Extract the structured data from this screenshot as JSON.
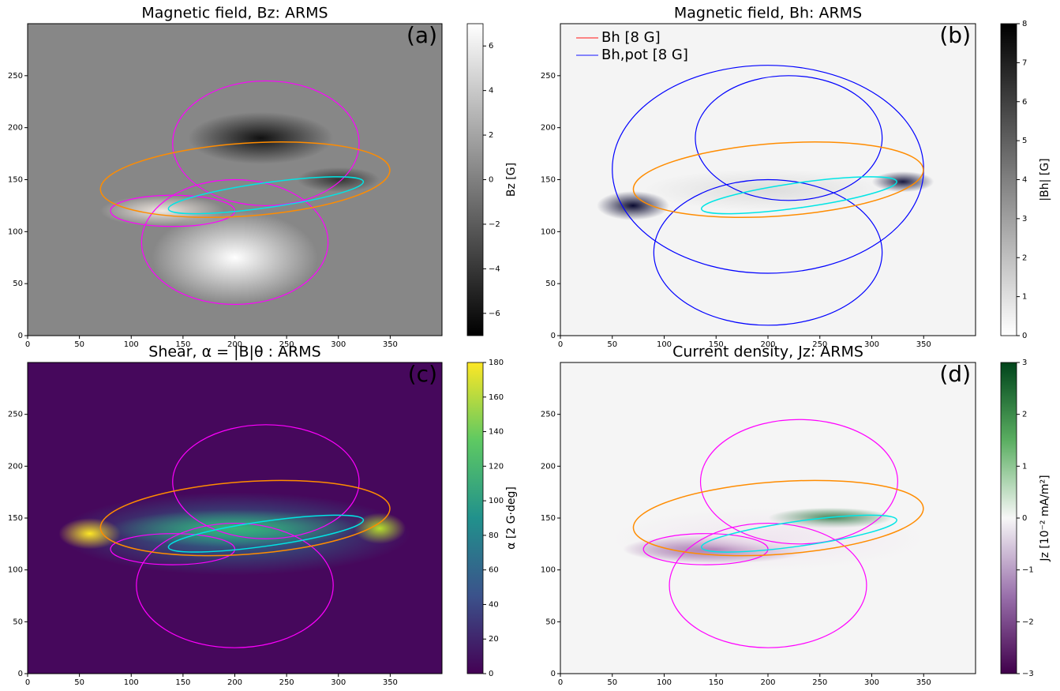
{
  "chart_data": [
    {
      "type": "heatmap",
      "title": "Magnetic field, Bz: ARMS",
      "panel_label": "(a)",
      "colorbar_label": "Bz [G]",
      "colormap": "gray",
      "xlim": [
        0,
        400
      ],
      "ylim": [
        0,
        300
      ],
      "xticks": [
        0,
        50,
        100,
        150,
        200,
        250,
        300,
        350
      ],
      "yticks": [
        0,
        50,
        100,
        150,
        200,
        250
      ],
      "clim": [
        -7,
        7
      ],
      "cticks": [
        {
          "value": -6,
          "label": "−6"
        },
        {
          "value": -4,
          "label": "−4"
        },
        {
          "value": -2,
          "label": "−2"
        },
        0,
        2,
        4,
        6
      ]
    },
    {
      "type": "heatmap",
      "title": "Magnetic field, Bh: ARMS",
      "panel_label": "(b)",
      "colorbar_label": "|Bh| [G]",
      "colormap": "gray_r",
      "xlim": [
        0,
        400
      ],
      "ylim": [
        0,
        300
      ],
      "xticks": [
        0,
        50,
        100,
        150,
        200,
        250,
        300,
        350
      ],
      "yticks": [
        0,
        50,
        100,
        150,
        200,
        250
      ],
      "clim": [
        0,
        8
      ],
      "cticks": [
        0,
        1,
        2,
        3,
        4,
        5,
        6,
        7,
        8
      ],
      "legend": [
        {
          "name": "Bh [8 G]",
          "color": "#ff4040"
        },
        {
          "name": "Bh,pot [8 G]",
          "color": "#4040ff"
        }
      ],
      "legend_loc": "upper left"
    },
    {
      "type": "heatmap",
      "title": "Shear, α = |B|θ : ARMS",
      "panel_label": "(c)",
      "colorbar_label": "α [2 G·deg]",
      "colormap": "viridis",
      "xlim": [
        0,
        400
      ],
      "ylim": [
        0,
        300
      ],
      "xticks": [
        0,
        50,
        100,
        150,
        200,
        250,
        300,
        350
      ],
      "yticks": [
        0,
        50,
        100,
        150,
        200,
        250
      ],
      "clim": [
        0,
        180
      ],
      "cticks": [
        0,
        20,
        40,
        60,
        80,
        100,
        120,
        140,
        160,
        180
      ]
    },
    {
      "type": "heatmap",
      "title": "Current density, Jz: ARMS",
      "panel_label": "(d)",
      "colorbar_label": "Jz [10⁻² mA/m²]",
      "colormap": "PRGn",
      "xlim": [
        0,
        400
      ],
      "ylim": [
        0,
        300
      ],
      "xticks": [
        0,
        50,
        100,
        150,
        200,
        250,
        300,
        350
      ],
      "yticks": [
        0,
        50,
        100,
        150,
        200,
        250
      ],
      "clim": [
        -3,
        3
      ],
      "cticks": [
        {
          "value": -3,
          "label": "−3"
        },
        {
          "value": -2,
          "label": "−2"
        },
        {
          "value": -1,
          "label": "−1"
        },
        0,
        1,
        2,
        3
      ]
    }
  ]
}
